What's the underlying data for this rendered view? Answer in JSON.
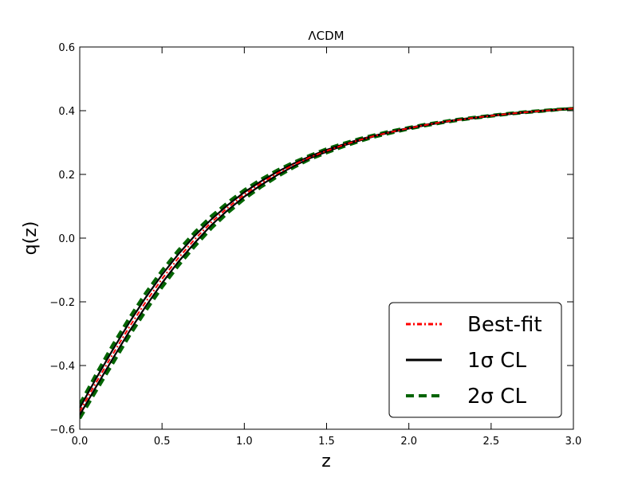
{
  "chart_data": {
    "type": "line",
    "title": "ΛCDM",
    "xlabel": "z",
    "ylabel": "q(z)",
    "xlim": [
      0.0,
      3.0
    ],
    "ylim": [
      -0.6,
      0.6
    ],
    "xticks": [
      "0.0",
      "0.5",
      "1.0",
      "1.5",
      "2.0",
      "2.5",
      "3.0"
    ],
    "yticks": [
      "−0.6",
      "−0.4",
      "−0.2",
      "0.0",
      "0.2",
      "0.4",
      "0.6"
    ],
    "grid": false,
    "legend_position": "lower-right",
    "x": [
      0.0,
      0.1,
      0.2,
      0.3,
      0.4,
      0.5,
      0.6,
      0.7,
      0.8,
      0.9,
      1.0,
      1.1,
      1.2,
      1.3,
      1.4,
      1.5,
      1.6,
      1.7,
      1.8,
      1.9,
      2.0,
      2.1,
      2.2,
      2.3,
      2.4,
      2.5,
      2.6,
      2.7,
      2.8,
      2.9,
      3.0
    ],
    "series": [
      {
        "name": "Best-fit",
        "style": "dash-dot",
        "color": "#ff0000",
        "values": [
          -0.544,
          -0.453,
          -0.365,
          -0.28,
          -0.201,
          -0.128,
          -0.062,
          -0.003,
          0.05,
          0.096,
          0.137,
          0.172,
          0.203,
          0.23,
          0.254,
          0.274,
          0.292,
          0.308,
          0.322,
          0.334,
          0.345,
          0.355,
          0.364,
          0.371,
          0.378,
          0.384,
          0.39,
          0.395,
          0.399,
          0.403,
          0.407
        ]
      },
      {
        "name": "1σ CL (upper)",
        "style": "solid",
        "color": "#000000",
        "values": [
          -0.533,
          -0.44,
          -0.351,
          -0.266,
          -0.187,
          -0.115,
          -0.05,
          0.008,
          0.059,
          0.104,
          0.144,
          0.178,
          0.208,
          0.234,
          0.257,
          0.277,
          0.294,
          0.31,
          0.323,
          0.335,
          0.346,
          0.356,
          0.364,
          0.372,
          0.378,
          0.385,
          0.39,
          0.395,
          0.399,
          0.403,
          0.407
        ]
      },
      {
        "name": "1σ CL (lower)",
        "style": "solid",
        "color": "#000000",
        "values": [
          -0.555,
          -0.466,
          -0.379,
          -0.294,
          -0.215,
          -0.141,
          -0.074,
          -0.014,
          0.041,
          0.088,
          0.13,
          0.166,
          0.198,
          0.226,
          0.251,
          0.271,
          0.29,
          0.306,
          0.321,
          0.333,
          0.344,
          0.354,
          0.363,
          0.371,
          0.377,
          0.384,
          0.389,
          0.394,
          0.399,
          0.403,
          0.407
        ]
      },
      {
        "name": "2σ CL (upper)",
        "style": "dashed",
        "color": "#006400",
        "values": [
          -0.522,
          -0.427,
          -0.336,
          -0.252,
          -0.173,
          -0.102,
          -0.038,
          0.019,
          0.069,
          0.112,
          0.151,
          0.184,
          0.213,
          0.238,
          0.26,
          0.28,
          0.297,
          0.312,
          0.325,
          0.337,
          0.347,
          0.357,
          0.365,
          0.373,
          0.379,
          0.385,
          0.391,
          0.396,
          0.4,
          0.404,
          0.407
        ]
      },
      {
        "name": "2σ CL (lower)",
        "style": "dashed",
        "color": "#006400",
        "values": [
          -0.566,
          -0.479,
          -0.394,
          -0.308,
          -0.229,
          -0.154,
          -0.086,
          -0.025,
          0.031,
          0.08,
          0.123,
          0.16,
          0.193,
          0.222,
          0.248,
          0.268,
          0.287,
          0.304,
          0.319,
          0.331,
          0.343,
          0.353,
          0.362,
          0.37,
          0.377,
          0.383,
          0.389,
          0.394,
          0.398,
          0.403,
          0.407
        ]
      }
    ],
    "legend": [
      {
        "label": "Best-fit",
        "style": "dash-dot",
        "color": "#ff0000"
      },
      {
        "label": "1σ CL",
        "style": "solid",
        "color": "#000000"
      },
      {
        "label": "2σ CL",
        "style": "dashed",
        "color": "#006400"
      }
    ]
  }
}
